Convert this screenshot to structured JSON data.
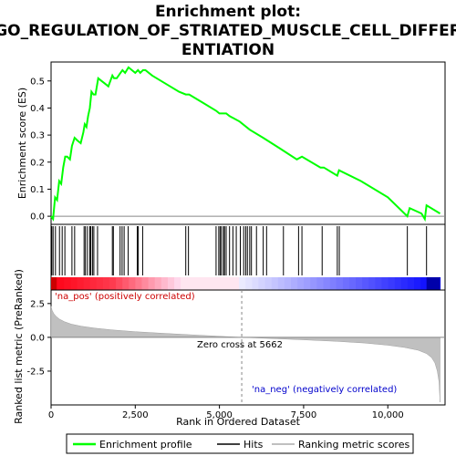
{
  "chart_data": {
    "type": "line",
    "title_line1": "Enrichment plot:",
    "title_line2": "GO_REGULATION_OF_STRIATED_MUSCLE_CELL_DIFFER",
    "title_line3": "ENTIATION",
    "top_panel": {
      "ylabel": "Enrichment score (ES)",
      "ylim": [
        -0.03,
        0.57
      ],
      "yticks": [
        0.0,
        0.1,
        0.2,
        0.3,
        0.4,
        0.5
      ],
      "ytick_labels": [
        "0.0",
        "0.1",
        "0.2",
        "0.3",
        "0.4",
        "0.5"
      ],
      "xlim": [
        0,
        11700
      ],
      "series": [
        {
          "name": "Enrichment profile",
          "color": "#00ff00",
          "x": [
            0,
            60,
            120,
            180,
            240,
            300,
            360,
            420,
            480,
            560,
            620,
            700,
            780,
            880,
            960,
            1000,
            1050,
            1100,
            1150,
            1200,
            1260,
            1320,
            1400,
            1500,
            1600,
            1700,
            1820,
            1870,
            1950,
            2060,
            2120,
            2200,
            2300,
            2400,
            2500,
            2580,
            2650,
            2730,
            2800,
            3000,
            3400,
            3800,
            4000,
            4100,
            4500,
            4900,
            5000,
            5100,
            5200,
            5300,
            5600,
            5900,
            6300,
            6800,
            7300,
            7450,
            8000,
            8100,
            8500,
            8550,
            9200,
            10000,
            10580,
            10650,
            11000,
            11100,
            11150,
            11550
          ],
          "y": [
            0.0,
            -0.01,
            0.07,
            0.06,
            0.13,
            0.12,
            0.18,
            0.22,
            0.22,
            0.21,
            0.26,
            0.29,
            0.28,
            0.27,
            0.31,
            0.34,
            0.33,
            0.37,
            0.4,
            0.46,
            0.45,
            0.45,
            0.51,
            0.5,
            0.49,
            0.48,
            0.52,
            0.51,
            0.51,
            0.53,
            0.54,
            0.53,
            0.55,
            0.54,
            0.53,
            0.54,
            0.53,
            0.54,
            0.54,
            0.52,
            0.49,
            0.46,
            0.45,
            0.45,
            0.42,
            0.39,
            0.38,
            0.38,
            0.38,
            0.37,
            0.35,
            0.32,
            0.29,
            0.25,
            0.21,
            0.22,
            0.18,
            0.18,
            0.15,
            0.17,
            0.13,
            0.07,
            0.0,
            0.03,
            0.01,
            -0.01,
            0.04,
            0.01
          ]
        }
      ]
    },
    "hits": [
      20,
      60,
      130,
      250,
      330,
      410,
      620,
      700,
      980,
      1020,
      1080,
      1150,
      1180,
      1230,
      1270,
      1380,
      1820,
      1850,
      2050,
      2110,
      2170,
      2290,
      2560,
      2590,
      2720,
      4000,
      4080,
      4900,
      4980,
      5020,
      5060,
      5120,
      5150,
      5200,
      5300,
      5400,
      5500,
      5620,
      5720,
      5780,
      5830,
      5900,
      5950,
      6100,
      6300,
      6400,
      6900,
      7350,
      7450,
      8050,
      8500,
      8560,
      10580,
      11150
    ],
    "heatmap_bar": {
      "label_pos": "'na_pos' (positively correlated)",
      "label_neg": "'na_neg' (negatively correlated)",
      "pos_color": "#ff0000",
      "neg_color": "#0000ff"
    },
    "bottom_panel": {
      "ylabel": "Ranked list metric (PreRanked)",
      "xlabel": "Rank in Ordered Dataset",
      "ylim": [
        -5,
        3.5
      ],
      "yticks": [
        -2.5,
        0.0,
        2.5
      ],
      "ytick_labels": [
        "-2.5",
        "0.0",
        "2.5"
      ],
      "xticks": [
        0,
        2500,
        5000,
        7500,
        10000
      ],
      "xtick_labels": [
        "0",
        "2,500",
        "5,000",
        "7,500",
        "10,000"
      ],
      "metric_x": [
        0,
        30,
        80,
        150,
        250,
        400,
        600,
        900,
        1300,
        1800,
        2500,
        3300,
        4200,
        5000,
        5662,
        6500,
        7500,
        8500,
        9300,
        10000,
        10500,
        10900,
        11150,
        11300,
        11400,
        11470,
        11520,
        11550
      ],
      "metric_y": [
        2.3,
        2.0,
        1.75,
        1.55,
        1.35,
        1.15,
        0.98,
        0.82,
        0.68,
        0.55,
        0.42,
        0.3,
        0.18,
        0.08,
        0.0,
        -0.08,
        -0.18,
        -0.3,
        -0.42,
        -0.58,
        -0.75,
        -0.95,
        -1.2,
        -1.5,
        -1.9,
        -2.5,
        -3.3,
        -4.8
      ],
      "zero_cross_label": "Zero cross at 5662",
      "zero_cross": 5662
    },
    "legend": [
      {
        "name": "Enrichment profile",
        "color": "#00ff00"
      },
      {
        "name": "Hits",
        "color": "#000000"
      },
      {
        "name": "Ranking metric scores",
        "color": "#c0c0c0"
      }
    ]
  }
}
